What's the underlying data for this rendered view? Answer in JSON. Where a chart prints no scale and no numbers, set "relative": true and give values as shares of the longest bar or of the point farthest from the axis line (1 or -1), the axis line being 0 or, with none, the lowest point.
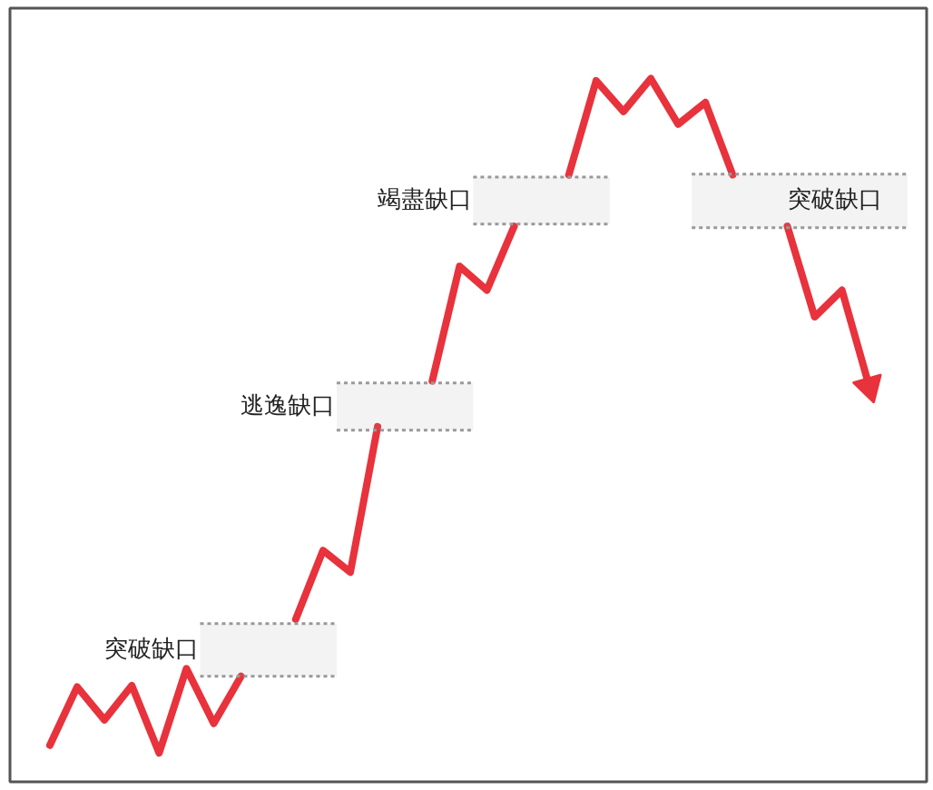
{
  "chart_data": {
    "type": "line",
    "relative": true,
    "categories": [
      null,
      null,
      null,
      null,
      null,
      null,
      null,
      null,
      null,
      null,
      null,
      null,
      null,
      null,
      null,
      null,
      null,
      null,
      null,
      null,
      null,
      null,
      null,
      null,
      null,
      null,
      null,
      null,
      null,
      null,
      null
    ],
    "series": [
      {
        "color": "#e8323c",
        "values": [
          0.052,
          0.135,
          0.088,
          0.137,
          0.041,
          0.161,
          0.083,
          0.15,
          null,
          null,
          null,
          null,
          null,
          null,
          null,
          null,
          null,
          null,
          null,
          null,
          null,
          null,
          null,
          null,
          null,
          null,
          null,
          null,
          null,
          null,
          null
        ]
      },
      {
        "color": "#e8323c",
        "values": [
          null,
          null,
          null,
          null,
          null,
          null,
          null,
          null,
          null,
          0.231,
          0.329,
          0.298,
          0.505,
          null,
          null,
          null,
          null,
          null,
          null,
          null,
          null,
          null,
          null,
          null,
          null,
          null,
          null,
          null,
          null,
          null,
          null
        ]
      },
      {
        "color": "#e8323c",
        "values": [
          null,
          null,
          null,
          null,
          null,
          null,
          null,
          null,
          null,
          null,
          null,
          null,
          null,
          null,
          0.57,
          0.733,
          0.699,
          0.79,
          null,
          null,
          null,
          null,
          null,
          null,
          null,
          null,
          null,
          null,
          null,
          null,
          null
        ]
      },
      {
        "color": "#e8323c",
        "values": [
          null,
          null,
          null,
          null,
          null,
          null,
          null,
          null,
          null,
          null,
          null,
          null,
          null,
          null,
          null,
          null,
          null,
          null,
          null,
          0.863,
          0.997,
          0.953,
          1.0,
          0.935,
          0.966,
          0.863,
          null,
          null,
          null,
          null,
          null
        ]
      },
      {
        "color": "#e8323c",
        "values": [
          null,
          null,
          null,
          null,
          null,
          null,
          null,
          null,
          null,
          null,
          null,
          null,
          null,
          null,
          null,
          null,
          null,
          null,
          null,
          null,
          null,
          null,
          null,
          null,
          null,
          null,
          null,
          0.79,
          0.661,
          0.699,
          0.562
        ]
      }
    ],
    "bands": [
      {
        "axis": "y",
        "from": 0.15,
        "to": 0.225,
        "label": "突破缺口",
        "color": "#999999"
      },
      {
        "axis": "y",
        "from": 0.5,
        "to": 0.567,
        "label": "逃逸缺口",
        "color": "#999999"
      },
      {
        "axis": "y",
        "from": 0.793,
        "to": 0.86,
        "label": "竭盡缺口",
        "color": "#999999"
      },
      {
        "axis": "y",
        "from": 0.788,
        "to": 0.864,
        "label": "突破缺口",
        "color": "#999999"
      }
    ]
  }
}
